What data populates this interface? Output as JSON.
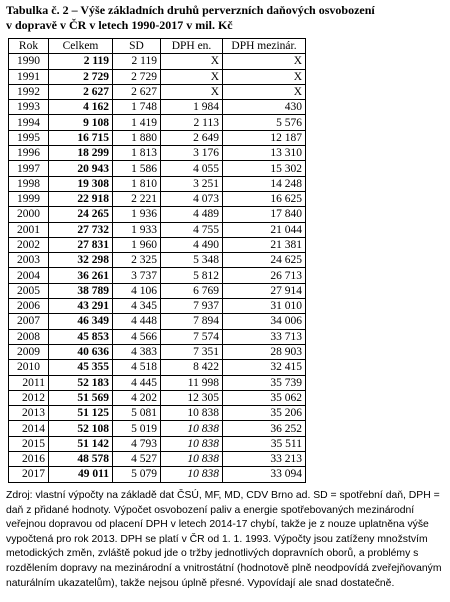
{
  "title": [
    "Tabulka č. 2 – Výše základních druhů perverzních daňových  osvobození",
    "v dopravě  v ČR v letech 1990-2017 v mil. Kč"
  ],
  "table": {
    "header": [
      "Rok",
      "Celkem",
      "SD",
      "DPH en.",
      "DPH mezinár."
    ],
    "rows": [
      [
        "1990",
        "2 119",
        "2 119",
        "X",
        "X"
      ],
      [
        "1991",
        "2 729",
        "2 729",
        "X",
        "X"
      ],
      [
        "1992",
        "2 627",
        "2 627",
        "X",
        "X"
      ],
      [
        "1993",
        "4 162",
        "1 748",
        "1 984",
        "430"
      ],
      [
        "1994",
        "9 108",
        "1 419",
        "2 113",
        "5 576"
      ],
      [
        "1995",
        "16 715",
        "1 880",
        "2 649",
        "12 187"
      ],
      [
        "1996",
        "18 299",
        "1 813",
        "3 176",
        "13 310"
      ],
      [
        "1997",
        "20 943",
        "1 586",
        "4 055",
        "15 302"
      ],
      [
        "1998",
        "19 308",
        "1 810",
        "3 251",
        "14 248"
      ],
      [
        "1999",
        "22 918",
        "2 221",
        "4 073",
        "16 625"
      ],
      [
        "2000",
        "24 265",
        "1 936",
        "4 489",
        "17 840"
      ],
      [
        "2001",
        "27 732",
        "1 933",
        "4 755",
        "21 044"
      ],
      [
        "2002",
        "27 831",
        "1 960",
        "4 490",
        "21 381"
      ],
      [
        "2003",
        "32 298",
        "2 325",
        "5 348",
        "24 625"
      ],
      [
        "2004",
        "36 261",
        "3 737",
        "5 812",
        "26 713"
      ],
      [
        "2005",
        "38 789",
        "4 106",
        "6 769",
        "27 914"
      ],
      [
        "2006",
        "43 291",
        "4 345",
        "7 937",
        "31 010"
      ],
      [
        "2007",
        "46 349",
        "4 448",
        "7 894",
        "34 006"
      ],
      [
        "2008",
        "45 853",
        "4 566",
        "7 574",
        "33 713"
      ],
      [
        "2009",
        "40 636",
        "4 383",
        "7 351",
        "28 903"
      ],
      [
        "2010",
        "45 355",
        "4 518",
        "8 422",
        "32 415"
      ],
      [
        "2011",
        "52 183",
        "4 445",
        "11 998",
        "35 739"
      ],
      [
        "2012",
        "51 569",
        "4 202",
        "12 305",
        "35 062"
      ],
      [
        "2013",
        "51 125",
        "5 081",
        "10 838",
        "35 206"
      ],
      [
        "2014",
        "52 108",
        "5 019",
        "10 838",
        "36 252"
      ],
      [
        "2015",
        "51 142",
        "4 793",
        "10 838",
        "35 511"
      ],
      [
        "2016",
        "48 578",
        "4 527",
        "10 838",
        "33 213"
      ],
      [
        "2017",
        "49 011",
        "5 079",
        "10 838",
        "33 094"
      ]
    ]
  },
  "footnote": "Zdroj: vlastní výpočty na základě dat ČSÚ, MF, MD, CDV Brno ad. SD = spotřební daň, DPH = daň z přidané hodnoty. Výpočet osvobození paliv a energie spotřebovaných mezinárodní veřejnou dopravou od placení DPH v letech 2014-17 chybí, takže je z nouze uplatněna výše vypočtená pro rok 2013. DPH se platí v ČR od 1. 1. 1993. Výpočty jsou zatíženy množstvím metodických změn, zvláště pokud jde o tržby jednotlivých dopravních oborů, a problémy s rozdělením dopravy na mezinárodní a vnitrostátní (hodnotově plně neodpovídá zveřejňovaným naturálním ukazatelům), takže nejsou úplně přesné. Vypovídají ale snad dostatečně."
}
